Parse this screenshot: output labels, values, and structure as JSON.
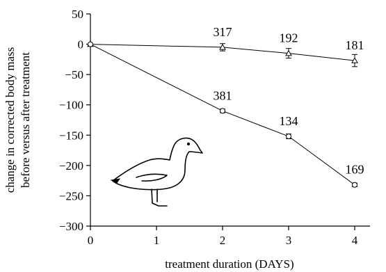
{
  "chart_data": {
    "type": "line",
    "xlabel": "treatment duration (DAYS)",
    "ylabel_lines": [
      "change in corrected body mass",
      "before versus after treatment"
    ],
    "xlim": [
      0,
      4
    ],
    "ylim": [
      -300,
      50
    ],
    "xticks": [
      0,
      1,
      2,
      3,
      4
    ],
    "yticks": [
      50,
      0,
      -50,
      -100,
      -150,
      -200,
      -250,
      -300
    ],
    "grid": false,
    "series": [
      {
        "marker": "triangle",
        "x": [
          0,
          2,
          3,
          4
        ],
        "y": [
          0,
          -5,
          -15,
          -27
        ],
        "err": [
          0,
          6,
          8,
          10
        ],
        "labels": [
          "",
          "317",
          "192",
          "181"
        ]
      },
      {
        "marker": "circle",
        "x": [
          0,
          2,
          3,
          4
        ],
        "y": [
          0,
          -110,
          -152,
          -232
        ],
        "err": [
          0,
          3,
          4,
          3
        ],
        "labels": [
          "",
          "381",
          "134",
          "169"
        ]
      }
    ]
  }
}
